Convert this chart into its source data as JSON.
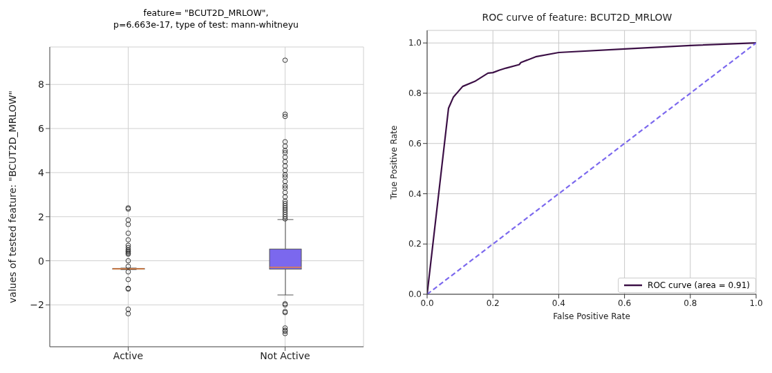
{
  "chart_data": [
    {
      "type": "box",
      "title": "feature= \"BCUT2D_MRLOW\",\np=6.663e-17, type of test: mann-whitneyu",
      "ylabel": "values of tested feature: \"BCUT2D_MRLOW\"",
      "categories": [
        "Active",
        "Not Active"
      ],
      "color": "#7b68ee",
      "ylim": [
        -3.9,
        9.7
      ],
      "yticks": [
        -2,
        0,
        2,
        4,
        6,
        8
      ],
      "grid": true,
      "boxes": [
        {
          "low": -0.4,
          "q1": -0.38,
          "median": -0.37,
          "q3": -0.35,
          "high": -0.33,
          "outliers": [
            2.4,
            2.35,
            1.85,
            1.65,
            1.25,
            0.95,
            0.7,
            0.6,
            0.5,
            0.45,
            0.4,
            0.35,
            0.3,
            0.0,
            -0.25,
            -0.5,
            -0.85,
            -1.25,
            -1.28,
            -2.2,
            -2.4
          ]
        },
        {
          "low": -1.55,
          "q1": -0.38,
          "median": -0.3,
          "q3": 0.53,
          "high": 1.87,
          "outliers": [
            1.9,
            2.0,
            2.1,
            2.2,
            2.3,
            2.4,
            2.5,
            2.6,
            2.7,
            2.9,
            3.1,
            3.3,
            3.4,
            3.6,
            3.8,
            3.9,
            4.1,
            4.3,
            4.5,
            4.7,
            4.9,
            5.0,
            5.2,
            5.4,
            6.55,
            6.65,
            9.1,
            -1.95,
            -2.0,
            -2.3,
            -2.35,
            -3.05,
            -3.15,
            -3.2,
            -3.3
          ]
        }
      ]
    },
    {
      "type": "line",
      "title": "ROC curve of feature: BCUT2D_MRLOW",
      "xlabel": "False Positive Rate",
      "ylabel": "True Positive Rate",
      "xlim": [
        0,
        1
      ],
      "ylim": [
        0,
        1.05
      ],
      "xticks": [
        {
          "value": 0,
          "label": "0.0"
        },
        {
          "value": 0.2,
          "label": "0.2"
        },
        {
          "value": 0.4,
          "label": "0.4"
        },
        {
          "value": 0.6,
          "label": "0.6"
        },
        {
          "value": 0.8,
          "label": "0.8"
        },
        {
          "value": 1,
          "label": "1.0"
        }
      ],
      "yticks": [
        {
          "value": 0,
          "label": "0.0"
        },
        {
          "value": 0.2,
          "label": "0.2"
        },
        {
          "value": 0.4,
          "label": "0.4"
        },
        {
          "value": 0.6,
          "label": "0.6"
        },
        {
          "value": 0.8,
          "label": "0.8"
        },
        {
          "value": 1,
          "label": "1.0"
        }
      ],
      "grid": true,
      "legend": "bottom right",
      "marker": "none",
      "series": [
        {
          "name": "ROC curve (area = 0.91)",
          "color": "#3b0f45",
          "line_style": "solid",
          "x": [
            0,
            0.065,
            0.08,
            0.108,
            0.145,
            0.185,
            0.2,
            0.22,
            0.24,
            0.28,
            0.285,
            0.33,
            0.4,
            0.6,
            0.8,
            1
          ],
          "values": [
            0,
            0.74,
            0.785,
            0.827,
            0.847,
            0.88,
            0.882,
            0.892,
            0.9,
            0.914,
            0.922,
            0.945,
            0.962,
            0.976,
            0.99,
            1
          ]
        },
        {
          "color": "#7b68ee",
          "line_style": "dashed",
          "x": [
            0,
            1
          ],
          "values": [
            0,
            1
          ]
        }
      ]
    }
  ]
}
